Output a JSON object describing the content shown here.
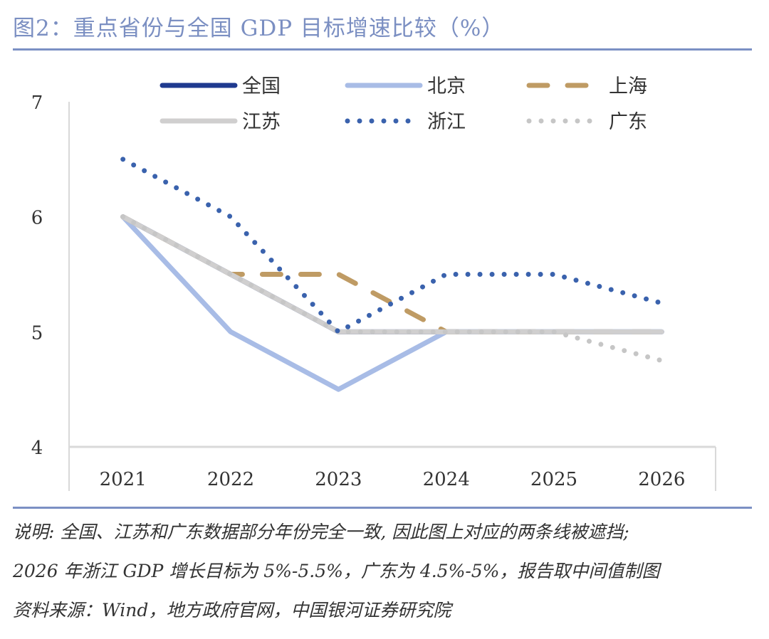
{
  "title": "图2：重点省份与全国 GDP 目标增速比较（%）",
  "notes": [
    "说明: 全国、江苏和广东数据部分年份完全一致, 因此图上对应的两条线被遮挡;",
    "2026 年浙江 GDP 增长目标为 5%-5.5%，广东为 4.5%-5%，报告取中间值制图",
    "资料来源：Wind，地方政府官网，中国银河证券研究院"
  ],
  "chart_data": {
    "type": "line",
    "categories": [
      "2021",
      "2022",
      "2023",
      "2024",
      "2025",
      "2026"
    ],
    "ylim": [
      4,
      7
    ],
    "yticks": [
      4,
      5,
      6,
      7
    ],
    "grid": false,
    "legend_position": "top",
    "series": [
      {
        "name": "全国",
        "values": [
          6,
          5.5,
          5,
          5,
          5,
          5
        ],
        "color": "#1f3a8f",
        "style": "solid"
      },
      {
        "name": "北京",
        "values": [
          6,
          5,
          4.5,
          5,
          5,
          5
        ],
        "color": "#a8bce6",
        "style": "solid"
      },
      {
        "name": "上海",
        "values": [
          6,
          5.5,
          5.5,
          5,
          5,
          5
        ],
        "color": "#bf9b64",
        "style": "dashed"
      },
      {
        "name": "江苏",
        "values": [
          6,
          5.5,
          5,
          5,
          5,
          5
        ],
        "color": "#d0cfcf",
        "style": "solid"
      },
      {
        "name": "浙江",
        "values": [
          6.5,
          6,
          5,
          5.5,
          5.5,
          5.25
        ],
        "color": "#3a62ad",
        "style": "dotted"
      },
      {
        "name": "广东",
        "values": [
          6,
          5.5,
          5,
          5,
          5,
          4.75
        ],
        "color": "#c6c6c6",
        "style": "dotted"
      }
    ],
    "draw_order": [
      "全国",
      "北京",
      "上海",
      "江苏",
      "广东",
      "浙江"
    ]
  }
}
